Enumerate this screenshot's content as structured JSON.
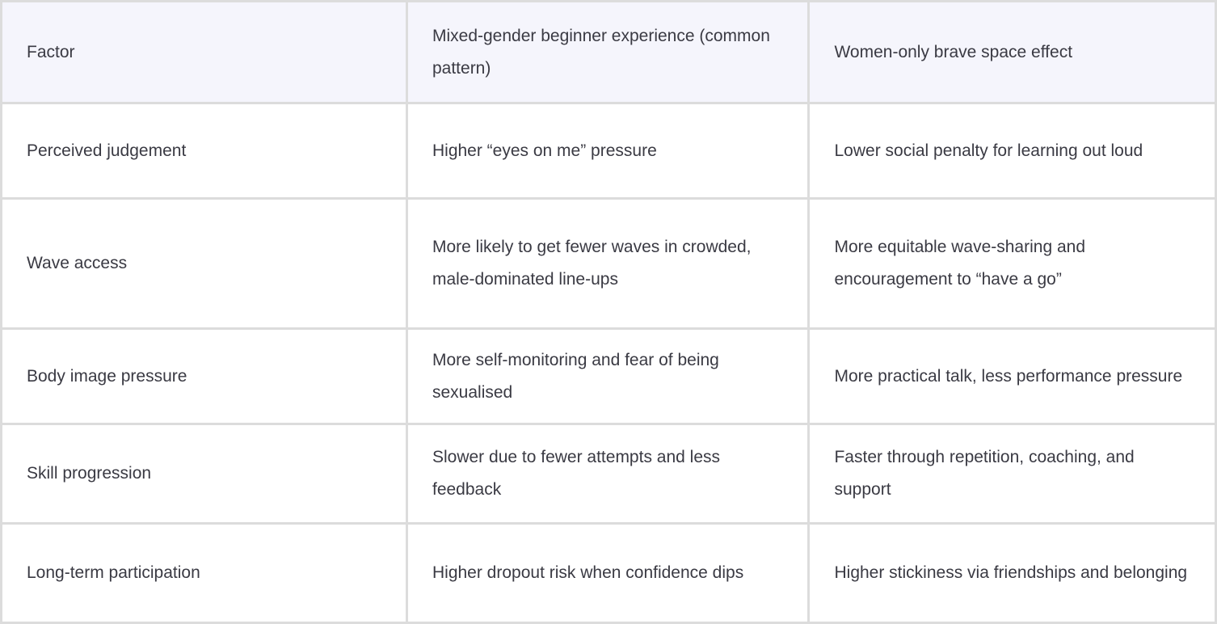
{
  "table": {
    "headers": [
      "Factor",
      "Mixed-gender beginner experience (common pattern)",
      "Women-only brave space effect"
    ],
    "rows": [
      {
        "cells": [
          "Perceived judgement",
          "Higher “eyes on me” pressure",
          "Lower social penalty for learning out loud"
        ]
      },
      {
        "cells": [
          "Wave access",
          "More likely to get fewer waves in crowded, male-dominated line-ups",
          "More equitable wave-sharing and encouragement to “have a go”"
        ]
      },
      {
        "cells": [
          "Body image pressure",
          "More self-monitoring and fear of being sexualised",
          "More practical talk, less performance pressure"
        ]
      },
      {
        "cells": [
          "Skill progression",
          "Slower due to fewer attempts and less feedback",
          "Faster through repetition, coaching, and support"
        ]
      },
      {
        "cells": [
          "Long-term participation",
          "Higher dropout risk when confidence dips",
          "Higher stickiness via friendships and belonging"
        ]
      }
    ]
  },
  "colors": {
    "header_bg": "#f5f5fc",
    "cell_bg": "#ffffff",
    "grid_border": "#dcdcdc",
    "text": "#3a3a43"
  }
}
